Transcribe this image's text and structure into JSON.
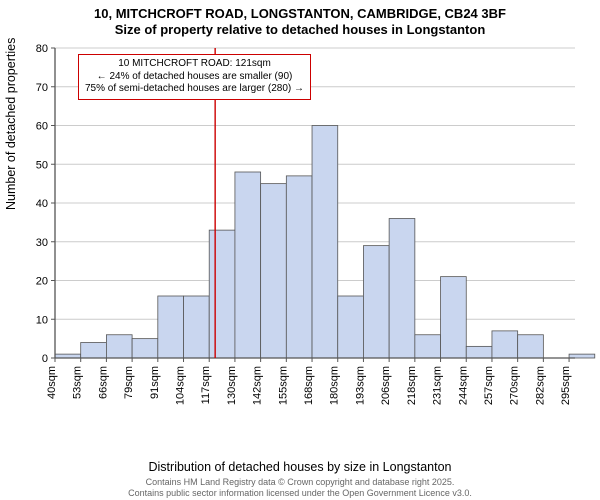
{
  "titles": {
    "line1": "10, MITCHCROFT ROAD, LONGSTANTON, CAMBRIDGE, CB24 3BF",
    "line2": "Size of property relative to detached houses in Longstanton"
  },
  "axes": {
    "y_label": "Number of detached properties",
    "x_label": "Distribution of detached houses by size in Longstanton",
    "y_min": 0,
    "y_max": 80,
    "y_tick_step": 10,
    "y_ticks": [
      0,
      10,
      20,
      30,
      40,
      50,
      60,
      70,
      80
    ],
    "x_tick_labels": [
      "40sqm",
      "53sqm",
      "66sqm",
      "79sqm",
      "91sqm",
      "104sqm",
      "117sqm",
      "130sqm",
      "142sqm",
      "155sqm",
      "168sqm",
      "180sqm",
      "193sqm",
      "206sqm",
      "218sqm",
      "231sqm",
      "244sqm",
      "257sqm",
      "270sqm",
      "282sqm",
      "295sqm"
    ]
  },
  "histogram": {
    "type": "histogram",
    "bar_fill": "#c9d6ef",
    "bar_stroke": "#555555",
    "grid_color": "#cccccc",
    "background_color": "#ffffff",
    "bin_start": 40,
    "bin_width_sqm": 13,
    "x_min": 40,
    "x_max": 303,
    "counts": [
      1,
      4,
      6,
      5,
      16,
      16,
      33,
      48,
      45,
      47,
      60,
      16,
      29,
      36,
      6,
      21,
      3,
      7,
      6,
      0,
      1
    ]
  },
  "marker": {
    "value_sqm": 121,
    "color": "#cc0000"
  },
  "annotation": {
    "line1": "10 MITCHCROFT ROAD: 121sqm",
    "line2": "← 24% of detached houses are smaller (90)",
    "line3": "75% of semi-detached houses are larger (280) →",
    "border_color": "#cc0000",
    "background": "#ffffff",
    "fontsize": 10
  },
  "footer": {
    "line1": "Contains HM Land Registry data © Crown copyright and database right 2025.",
    "line2": "Contains public sector information licensed under the Open Government Licence v3.0.",
    "color": "#666666",
    "fontsize": 9
  },
  "style": {
    "title_fontsize": 13,
    "axis_label_fontsize": 12.5,
    "tick_fontsize": 11,
    "axis_line_color": "#555555"
  }
}
